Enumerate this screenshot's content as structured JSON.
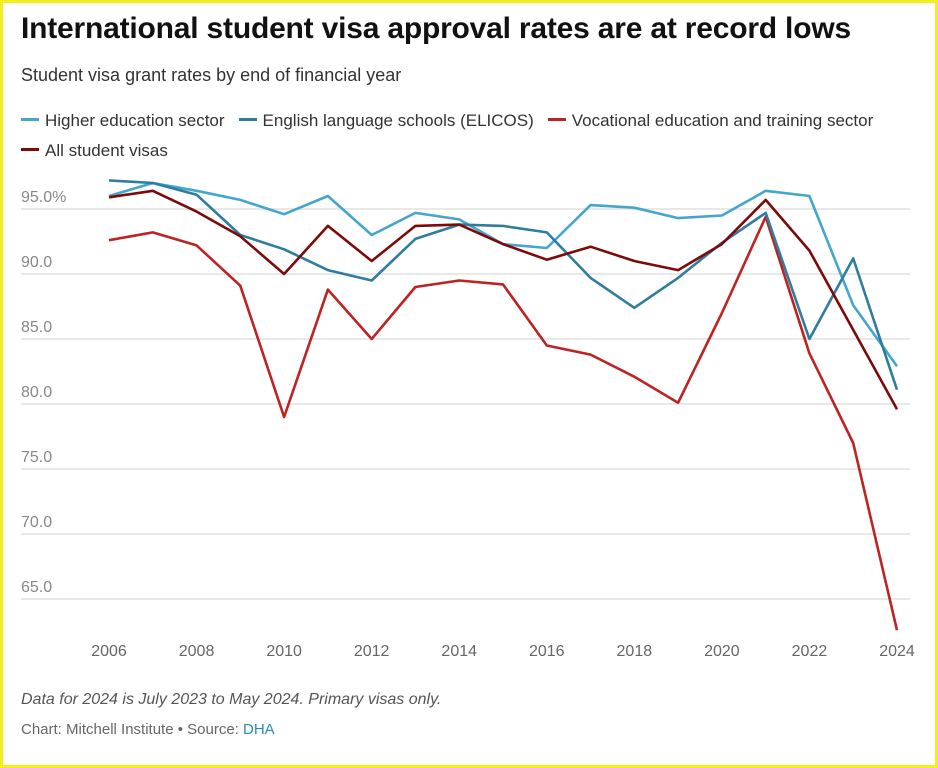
{
  "chart_data": {
    "type": "line",
    "title": "International student visa approval rates are at record lows",
    "subtitle": "Student visa grant rates by end of financial year",
    "x": [
      2006,
      2007,
      2008,
      2009,
      2010,
      2011,
      2012,
      2013,
      2014,
      2015,
      2016,
      2017,
      2018,
      2019,
      2020,
      2021,
      2022,
      2023,
      2024
    ],
    "x_ticks": [
      "2006",
      "2008",
      "2010",
      "2012",
      "2014",
      "2016",
      "2018",
      "2020",
      "2022",
      "2024"
    ],
    "y_ticks": [
      "95.0%",
      "90.0",
      "85.0",
      "80.0",
      "75.0",
      "70.0",
      "65.0"
    ],
    "y_tick_values": [
      95,
      90,
      85,
      80,
      75,
      70,
      65
    ],
    "ylim": [
      62,
      97.5
    ],
    "grid": true,
    "legend_placement": "top",
    "series": [
      {
        "name": "Higher education sector",
        "color": "#45a6cc",
        "values": [
          96.0,
          97.0,
          96.4,
          95.7,
          94.6,
          96.0,
          93.0,
          94.7,
          94.2,
          92.3,
          92.0,
          95.3,
          95.1,
          94.3,
          94.5,
          96.4,
          96.0,
          87.6,
          82.9
        ]
      },
      {
        "name": "English language schools (ELICOS)",
        "color": "#2f7d9e",
        "values": [
          97.2,
          97.0,
          96.1,
          93.0,
          91.9,
          90.3,
          89.5,
          92.7,
          93.8,
          93.7,
          93.2,
          89.7,
          87.4,
          89.7,
          92.4,
          94.7,
          85.0,
          91.2,
          81.1
        ]
      },
      {
        "name": "Vocational education and training sector",
        "color": "#bd2323",
        "values": [
          92.6,
          93.2,
          92.2,
          89.1,
          79.0,
          88.8,
          85.0,
          89.0,
          89.5,
          89.2,
          84.5,
          83.8,
          82.1,
          80.1,
          87.0,
          94.4,
          83.9,
          77.0,
          62.6
        ]
      },
      {
        "name": "All student visas",
        "color": "#7c0a0a",
        "values": [
          95.9,
          96.4,
          94.8,
          92.9,
          90.0,
          93.7,
          91.0,
          93.7,
          93.8,
          92.3,
          91.1,
          92.1,
          91.0,
          90.3,
          92.3,
          95.7,
          91.8,
          85.7,
          79.6
        ]
      }
    ]
  },
  "footer": {
    "note": "Data for 2024 is July 2023 to May 2024. Primary visas only.",
    "source_prefix": "Chart: Mitchell Institute • Source: ",
    "source_link": "DHA"
  }
}
